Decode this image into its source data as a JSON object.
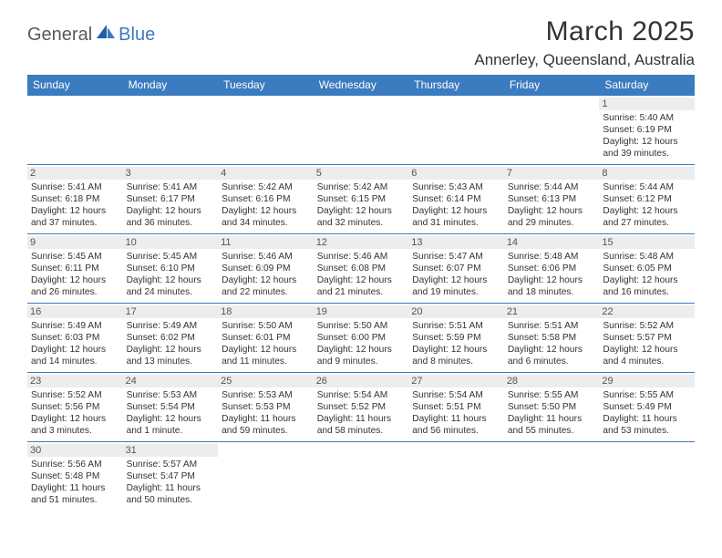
{
  "logo": {
    "part1": "General",
    "part2": "Blue"
  },
  "title": "March 2025",
  "location": "Annerley, Queensland, Australia",
  "colors": {
    "header_bg": "#3b7bbf",
    "header_text": "#ffffff",
    "daynum_bg": "#eceded",
    "border": "#3b7bbf",
    "title_color": "#333333",
    "logo_gray": "#58595b",
    "logo_blue": "#3b7bbf"
  },
  "weekdays": [
    "Sunday",
    "Monday",
    "Tuesday",
    "Wednesday",
    "Thursday",
    "Friday",
    "Saturday"
  ],
  "weeks": [
    [
      {
        "empty": true
      },
      {
        "empty": true
      },
      {
        "empty": true
      },
      {
        "empty": true
      },
      {
        "empty": true
      },
      {
        "empty": true
      },
      {
        "day": "1",
        "sunrise": "Sunrise: 5:40 AM",
        "sunset": "Sunset: 6:19 PM",
        "daylight1": "Daylight: 12 hours",
        "daylight2": "and 39 minutes."
      }
    ],
    [
      {
        "day": "2",
        "sunrise": "Sunrise: 5:41 AM",
        "sunset": "Sunset: 6:18 PM",
        "daylight1": "Daylight: 12 hours",
        "daylight2": "and 37 minutes."
      },
      {
        "day": "3",
        "sunrise": "Sunrise: 5:41 AM",
        "sunset": "Sunset: 6:17 PM",
        "daylight1": "Daylight: 12 hours",
        "daylight2": "and 36 minutes."
      },
      {
        "day": "4",
        "sunrise": "Sunrise: 5:42 AM",
        "sunset": "Sunset: 6:16 PM",
        "daylight1": "Daylight: 12 hours",
        "daylight2": "and 34 minutes."
      },
      {
        "day": "5",
        "sunrise": "Sunrise: 5:42 AM",
        "sunset": "Sunset: 6:15 PM",
        "daylight1": "Daylight: 12 hours",
        "daylight2": "and 32 minutes."
      },
      {
        "day": "6",
        "sunrise": "Sunrise: 5:43 AM",
        "sunset": "Sunset: 6:14 PM",
        "daylight1": "Daylight: 12 hours",
        "daylight2": "and 31 minutes."
      },
      {
        "day": "7",
        "sunrise": "Sunrise: 5:44 AM",
        "sunset": "Sunset: 6:13 PM",
        "daylight1": "Daylight: 12 hours",
        "daylight2": "and 29 minutes."
      },
      {
        "day": "8",
        "sunrise": "Sunrise: 5:44 AM",
        "sunset": "Sunset: 6:12 PM",
        "daylight1": "Daylight: 12 hours",
        "daylight2": "and 27 minutes."
      }
    ],
    [
      {
        "day": "9",
        "sunrise": "Sunrise: 5:45 AM",
        "sunset": "Sunset: 6:11 PM",
        "daylight1": "Daylight: 12 hours",
        "daylight2": "and 26 minutes."
      },
      {
        "day": "10",
        "sunrise": "Sunrise: 5:45 AM",
        "sunset": "Sunset: 6:10 PM",
        "daylight1": "Daylight: 12 hours",
        "daylight2": "and 24 minutes."
      },
      {
        "day": "11",
        "sunrise": "Sunrise: 5:46 AM",
        "sunset": "Sunset: 6:09 PM",
        "daylight1": "Daylight: 12 hours",
        "daylight2": "and 22 minutes."
      },
      {
        "day": "12",
        "sunrise": "Sunrise: 5:46 AM",
        "sunset": "Sunset: 6:08 PM",
        "daylight1": "Daylight: 12 hours",
        "daylight2": "and 21 minutes."
      },
      {
        "day": "13",
        "sunrise": "Sunrise: 5:47 AM",
        "sunset": "Sunset: 6:07 PM",
        "daylight1": "Daylight: 12 hours",
        "daylight2": "and 19 minutes."
      },
      {
        "day": "14",
        "sunrise": "Sunrise: 5:48 AM",
        "sunset": "Sunset: 6:06 PM",
        "daylight1": "Daylight: 12 hours",
        "daylight2": "and 18 minutes."
      },
      {
        "day": "15",
        "sunrise": "Sunrise: 5:48 AM",
        "sunset": "Sunset: 6:05 PM",
        "daylight1": "Daylight: 12 hours",
        "daylight2": "and 16 minutes."
      }
    ],
    [
      {
        "day": "16",
        "sunrise": "Sunrise: 5:49 AM",
        "sunset": "Sunset: 6:03 PM",
        "daylight1": "Daylight: 12 hours",
        "daylight2": "and 14 minutes."
      },
      {
        "day": "17",
        "sunrise": "Sunrise: 5:49 AM",
        "sunset": "Sunset: 6:02 PM",
        "daylight1": "Daylight: 12 hours",
        "daylight2": "and 13 minutes."
      },
      {
        "day": "18",
        "sunrise": "Sunrise: 5:50 AM",
        "sunset": "Sunset: 6:01 PM",
        "daylight1": "Daylight: 12 hours",
        "daylight2": "and 11 minutes."
      },
      {
        "day": "19",
        "sunrise": "Sunrise: 5:50 AM",
        "sunset": "Sunset: 6:00 PM",
        "daylight1": "Daylight: 12 hours",
        "daylight2": "and 9 minutes."
      },
      {
        "day": "20",
        "sunrise": "Sunrise: 5:51 AM",
        "sunset": "Sunset: 5:59 PM",
        "daylight1": "Daylight: 12 hours",
        "daylight2": "and 8 minutes."
      },
      {
        "day": "21",
        "sunrise": "Sunrise: 5:51 AM",
        "sunset": "Sunset: 5:58 PM",
        "daylight1": "Daylight: 12 hours",
        "daylight2": "and 6 minutes."
      },
      {
        "day": "22",
        "sunrise": "Sunrise: 5:52 AM",
        "sunset": "Sunset: 5:57 PM",
        "daylight1": "Daylight: 12 hours",
        "daylight2": "and 4 minutes."
      }
    ],
    [
      {
        "day": "23",
        "sunrise": "Sunrise: 5:52 AM",
        "sunset": "Sunset: 5:56 PM",
        "daylight1": "Daylight: 12 hours",
        "daylight2": "and 3 minutes."
      },
      {
        "day": "24",
        "sunrise": "Sunrise: 5:53 AM",
        "sunset": "Sunset: 5:54 PM",
        "daylight1": "Daylight: 12 hours",
        "daylight2": "and 1 minute."
      },
      {
        "day": "25",
        "sunrise": "Sunrise: 5:53 AM",
        "sunset": "Sunset: 5:53 PM",
        "daylight1": "Daylight: 11 hours",
        "daylight2": "and 59 minutes."
      },
      {
        "day": "26",
        "sunrise": "Sunrise: 5:54 AM",
        "sunset": "Sunset: 5:52 PM",
        "daylight1": "Daylight: 11 hours",
        "daylight2": "and 58 minutes."
      },
      {
        "day": "27",
        "sunrise": "Sunrise: 5:54 AM",
        "sunset": "Sunset: 5:51 PM",
        "daylight1": "Daylight: 11 hours",
        "daylight2": "and 56 minutes."
      },
      {
        "day": "28",
        "sunrise": "Sunrise: 5:55 AM",
        "sunset": "Sunset: 5:50 PM",
        "daylight1": "Daylight: 11 hours",
        "daylight2": "and 55 minutes."
      },
      {
        "day": "29",
        "sunrise": "Sunrise: 5:55 AM",
        "sunset": "Sunset: 5:49 PM",
        "daylight1": "Daylight: 11 hours",
        "daylight2": "and 53 minutes."
      }
    ],
    [
      {
        "day": "30",
        "sunrise": "Sunrise: 5:56 AM",
        "sunset": "Sunset: 5:48 PM",
        "daylight1": "Daylight: 11 hours",
        "daylight2": "and 51 minutes."
      },
      {
        "day": "31",
        "sunrise": "Sunrise: 5:57 AM",
        "sunset": "Sunset: 5:47 PM",
        "daylight1": "Daylight: 11 hours",
        "daylight2": "and 50 minutes."
      },
      {
        "empty": true
      },
      {
        "empty": true
      },
      {
        "empty": true
      },
      {
        "empty": true
      },
      {
        "empty": true
      }
    ]
  ]
}
